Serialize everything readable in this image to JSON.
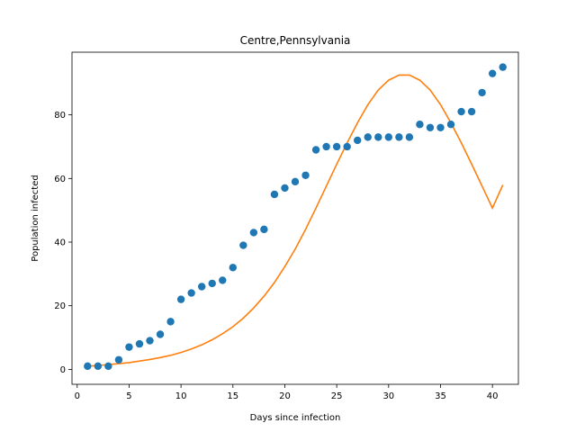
{
  "chart_data": {
    "type": "scatter",
    "title": "Centre,Pennsylvania",
    "xlabel": "Days since infection",
    "ylabel": "Population infected",
    "xlim": [
      -0.5,
      42.5
    ],
    "ylim": [
      -4.7,
      99.7
    ],
    "xticks": [
      0,
      5,
      10,
      15,
      20,
      25,
      30,
      35,
      40
    ],
    "yticks": [
      0,
      20,
      40,
      60,
      80
    ],
    "grid": false,
    "series": [
      {
        "kind": "scatter",
        "color": "#1f77b4",
        "x": [
          1,
          2,
          3,
          4,
          5,
          6,
          7,
          8,
          9,
          10,
          11,
          12,
          13,
          14,
          15,
          16,
          17,
          18,
          19,
          20,
          21,
          22,
          23,
          24,
          25,
          26,
          27,
          28,
          29,
          30,
          31,
          32,
          33,
          34,
          35,
          36,
          37,
          38,
          39,
          40,
          41
        ],
        "y": [
          1,
          1,
          1,
          3,
          7,
          8,
          9,
          11,
          15,
          22,
          24,
          26,
          27,
          28,
          32,
          39,
          43,
          44,
          55,
          57,
          59,
          61,
          69,
          70,
          70,
          70,
          72,
          73,
          73,
          73,
          73,
          73,
          77,
          76,
          76,
          77,
          81,
          81,
          87,
          93,
          95
        ]
      },
      {
        "kind": "line",
        "color": "#ff7f0e",
        "x": [
          1,
          2,
          3,
          4,
          5,
          6,
          7,
          8,
          9,
          10,
          11,
          12,
          13,
          14,
          15,
          16,
          17,
          18,
          19,
          20,
          21,
          22,
          23,
          24,
          25,
          26,
          27,
          28,
          29,
          30,
          31,
          32,
          33,
          34,
          35,
          36,
          37,
          38,
          39,
          40,
          41
        ],
        "y": [
          1.0,
          1.2,
          1.5,
          1.8,
          2.1,
          2.6,
          3.1,
          3.7,
          4.4,
          5.3,
          6.4,
          7.7,
          9.3,
          11.2,
          13.4,
          16.1,
          19.3,
          23.0,
          27.3,
          32.3,
          37.8,
          44.0,
          50.7,
          57.6,
          64.5,
          71.2,
          77.5,
          83.2,
          87.8,
          90.9,
          92.5,
          92.5,
          90.9,
          87.8,
          83.2,
          77.5,
          71.2,
          64.5,
          57.6,
          50.7,
          58.0
        ]
      }
    ]
  }
}
